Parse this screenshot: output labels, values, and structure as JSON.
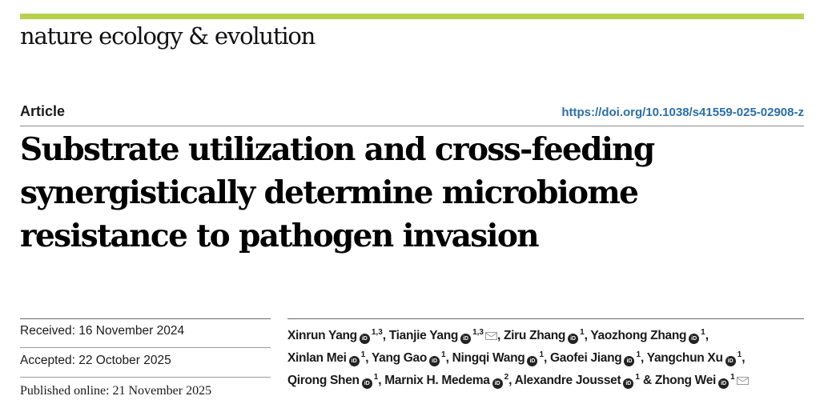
{
  "journal": {
    "name": "nature ecology & evolution",
    "accent_color": "#b7d04e"
  },
  "article": {
    "type": "Article",
    "doi": "https://doi.org/10.1038/s41559-025-02908-z",
    "title": "Substrate utilization and cross-feeding synergistically determine microbiome resistance to pathogen invasion"
  },
  "dates": {
    "received": "Received: 16 November 2024",
    "accepted": "Accepted: 22 October 2025",
    "published": "Published online: 21 November 2025"
  },
  "authors": [
    {
      "name": "Xinrun Yang",
      "aff": "1,3",
      "corresponding": false
    },
    {
      "name": "Tianjie Yang",
      "aff": "1,3",
      "corresponding": true
    },
    {
      "name": "Ziru Zhang",
      "aff": "1",
      "corresponding": false
    },
    {
      "name": "Yaozhong Zhang",
      "aff": "1",
      "corresponding": false
    },
    {
      "name": "Xinlan Mei",
      "aff": "1",
      "corresponding": false
    },
    {
      "name": "Yang Gao",
      "aff": "1",
      "corresponding": false
    },
    {
      "name": "Ningqi Wang",
      "aff": "1",
      "corresponding": false
    },
    {
      "name": "Gaofei Jiang",
      "aff": "1",
      "corresponding": false
    },
    {
      "name": "Yangchun Xu",
      "aff": "1",
      "corresponding": false
    },
    {
      "name": "Qirong Shen",
      "aff": "1",
      "corresponding": false
    },
    {
      "name": "Marnix H. Medema",
      "aff": "2",
      "corresponding": false
    },
    {
      "name": "Alexandre Jousset",
      "aff": "1",
      "corresponding": false
    },
    {
      "name": "Zhong Wei",
      "aff": "1",
      "corresponding": true
    }
  ],
  "icons": {
    "orcid": "orcid-icon",
    "orcid_glyph": "iD",
    "mail": "mail-icon"
  }
}
